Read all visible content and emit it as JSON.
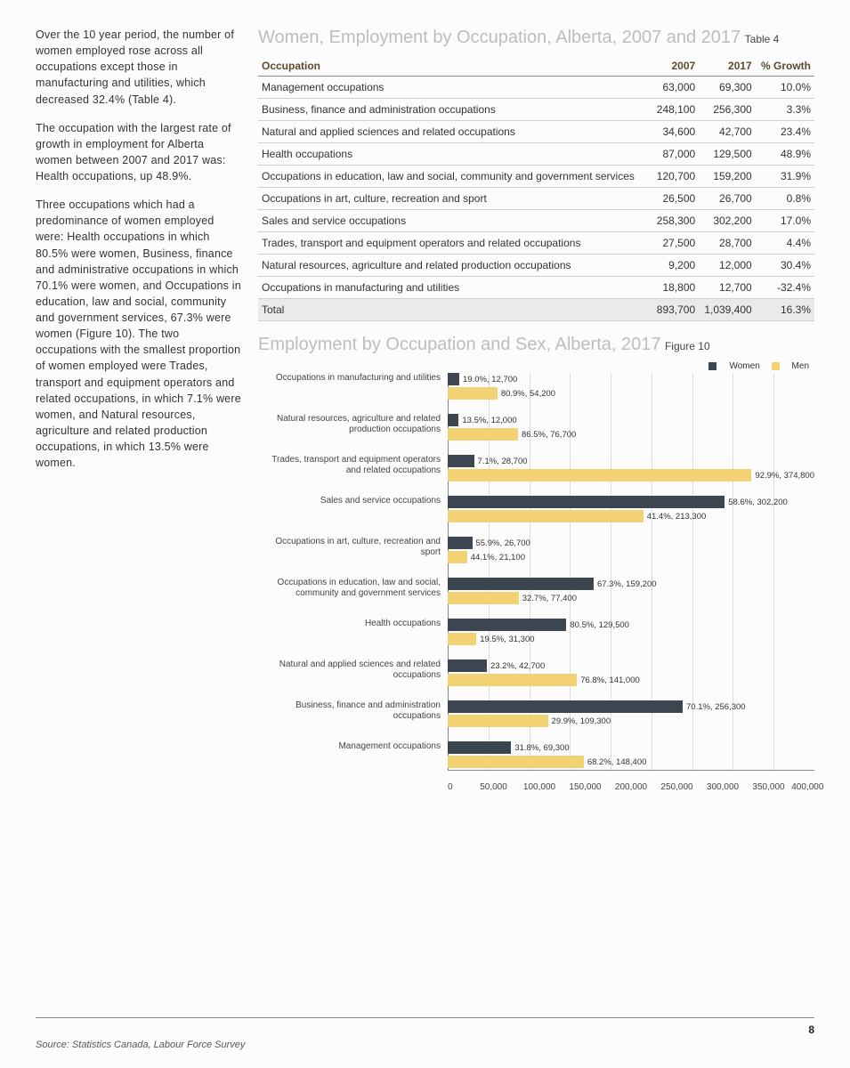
{
  "colors": {
    "women": "#3c4650",
    "men": "#f2d272",
    "title_gray": "#bdbdbd",
    "header_text": "#5d4a2a"
  },
  "left_text": {
    "p1": "Over the 10 year period, the number of women employed rose across all occupations except those in manufacturing and utilities, which decreased 32.4% (Table 4).",
    "p2": "The occupation with the largest rate of growth in employment for Alberta women between 2007 and 2017 was: Health occupations, up 48.9%.",
    "p3": "Three occupations which had a predominance of women employed were: Health occupations in which 80.5% were women, Business, finance and administrative occupations in which 70.1% were women, and Occupations in education, law and social, community and government services, 67.3% were women (Figure 10). The two occupations with the smallest proportion of women employed were Trades, transport and equipment operators and related occupations, in which 7.1% were women, and Natural resources, agriculture and related production occupations, in which 13.5% were women."
  },
  "table4": {
    "title": "Women, Employment by Occupation, Alberta, 2007 and 2017",
    "label": "Table 4",
    "headers": [
      "Occupation",
      "2007",
      "2017",
      "% Growth"
    ],
    "rows": [
      [
        "Management occupations",
        "63,000",
        "69,300",
        "10.0%"
      ],
      [
        "Business, finance and administration occupations",
        "248,100",
        "256,300",
        "3.3%"
      ],
      [
        "Natural and applied sciences and related occupations",
        "34,600",
        "42,700",
        "23.4%"
      ],
      [
        "Health occupations",
        "87,000",
        "129,500",
        "48.9%"
      ],
      [
        "Occupations in education, law and social, community and government services",
        "120,700",
        "159,200",
        "31.9%"
      ],
      [
        "Occupations in art, culture, recreation and sport",
        "26,500",
        "26,700",
        "0.8%"
      ],
      [
        "Sales and service occupations",
        "258,300",
        "302,200",
        "17.0%"
      ],
      [
        "Trades, transport and equipment operators and related occupations",
        "27,500",
        "28,700",
        "4.4%"
      ],
      [
        "Natural resources, agriculture and related production occupations",
        "9,200",
        "12,000",
        "30.4%"
      ],
      [
        "Occupations in manufacturing and utilities",
        "18,800",
        "12,700",
        "-32.4%"
      ]
    ],
    "total": [
      "Total",
      "893,700",
      "1,039,400",
      "16.3%"
    ]
  },
  "figure10": {
    "title": "Employment by Occupation and Sex, Alberta, 2017",
    "label": "Figure 10",
    "legend": {
      "women": "Women",
      "men": "Men"
    },
    "x_max": 400000,
    "x_ticks": [
      "0",
      "50,000",
      "100,000",
      "150,000",
      "200,000",
      "250,000",
      "300,000",
      "350,000",
      "400,000"
    ],
    "categories": [
      {
        "label": "Occupations in manufacturing and utilities",
        "women_v": 12700,
        "women_t": "19.0%, 12,700",
        "men_v": 54200,
        "men_t": "80.9%, 54,200"
      },
      {
        "label": "Natural resources, agriculture and related production occupations",
        "women_v": 12000,
        "women_t": "13.5%, 12,000",
        "men_v": 76700,
        "men_t": "86.5%, 76,700"
      },
      {
        "label": "Trades, transport and equipment operators and related occupations",
        "women_v": 28700,
        "women_t": "7.1%, 28,700",
        "men_v": 374800,
        "men_t": "92.9%, 374,800"
      },
      {
        "label": "Sales and service occupations",
        "women_v": 302200,
        "women_t": "58.6%, 302,200",
        "men_v": 213300,
        "men_t": "41.4%, 213,300"
      },
      {
        "label": "Occupations in art, culture, recreation and sport",
        "women_v": 26700,
        "women_t": "55.9%, 26,700",
        "men_v": 21100,
        "men_t": "44.1%, 21,100"
      },
      {
        "label": "Occupations in education, law and social, community and government services",
        "women_v": 159200,
        "women_t": "67.3%, 159,200",
        "men_v": 77400,
        "men_t": "32.7%, 77,400"
      },
      {
        "label": "Health occupations",
        "women_v": 129500,
        "women_t": "80.5%, 129,500",
        "men_v": 31300,
        "men_t": "19.5%, 31,300"
      },
      {
        "label": "Natural and applied sciences and related occupations",
        "women_v": 42700,
        "women_t": "23.2%, 42,700",
        "men_v": 141000,
        "men_t": "76.8%, 141,000"
      },
      {
        "label": "Business, finance and administration occupations",
        "women_v": 256300,
        "women_t": "70.1%, 256,300",
        "men_v": 109300,
        "men_t": "29.9%, 109,300"
      },
      {
        "label": "Management occupations",
        "women_v": 69300,
        "women_t": "31.8%, 69,300",
        "men_v": 148400,
        "men_t": "68.2%, 148,400"
      }
    ]
  },
  "footer": {
    "page": "8",
    "source": "Source: Statistics Canada, Labour Force Survey"
  }
}
